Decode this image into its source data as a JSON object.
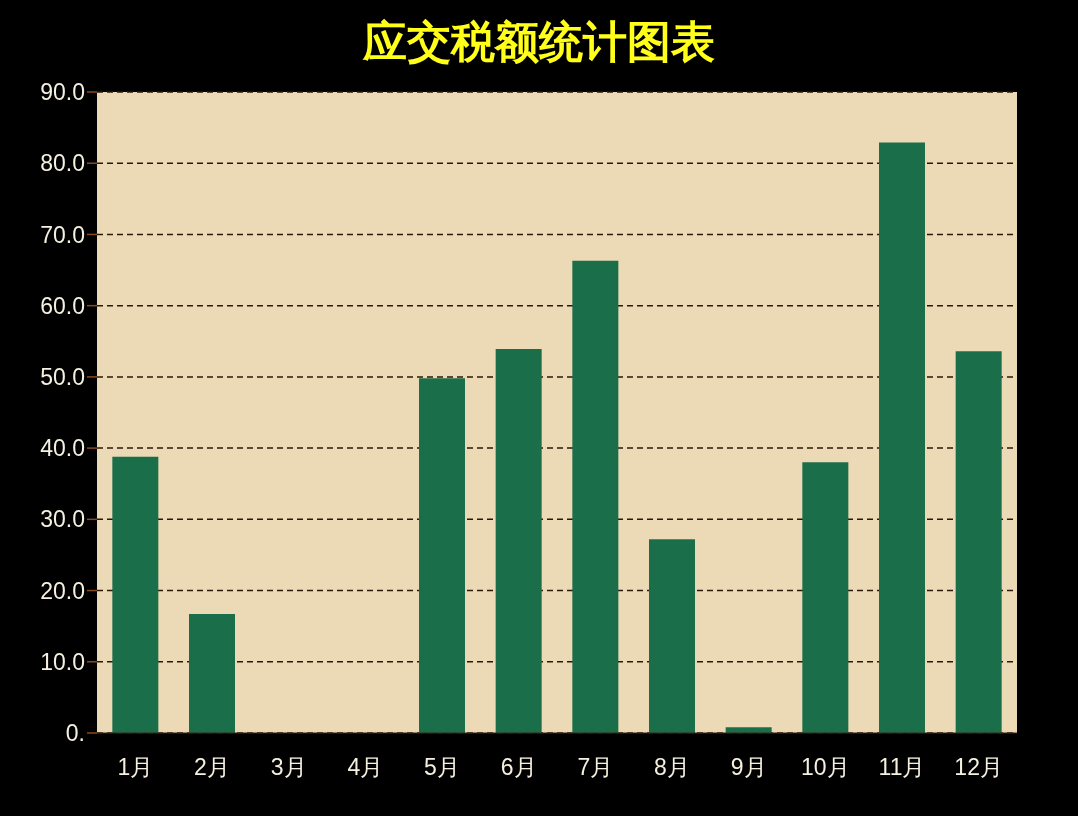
{
  "chart_data": {
    "type": "bar",
    "title": "应交税额统计图表",
    "categories": [
      "1月",
      "2月",
      "3月",
      "4月",
      "5月",
      "6月",
      "7月",
      "8月",
      "9月",
      "10月",
      "11月",
      "12月"
    ],
    "values": [
      38.8,
      16.7,
      0,
      0,
      49.8,
      53.9,
      66.3,
      27.2,
      0.8,
      38.0,
      82.9,
      53.6
    ],
    "color": "#1b6e4a",
    "ylim": [
      0,
      90
    ],
    "yticks": [
      {
        "value": 0,
        "label": "0."
      },
      {
        "value": 10,
        "label": "10.0"
      },
      {
        "value": 20,
        "label": "20.0"
      },
      {
        "value": 30,
        "label": "30.0"
      },
      {
        "value": 40,
        "label": "40.0"
      },
      {
        "value": 50,
        "label": "50.0"
      },
      {
        "value": 60,
        "label": "60.0"
      },
      {
        "value": 70,
        "label": "70.0"
      },
      {
        "value": 80,
        "label": "80.0"
      },
      {
        "value": 90,
        "label": "90.0"
      }
    ],
    "grid": "y"
  }
}
